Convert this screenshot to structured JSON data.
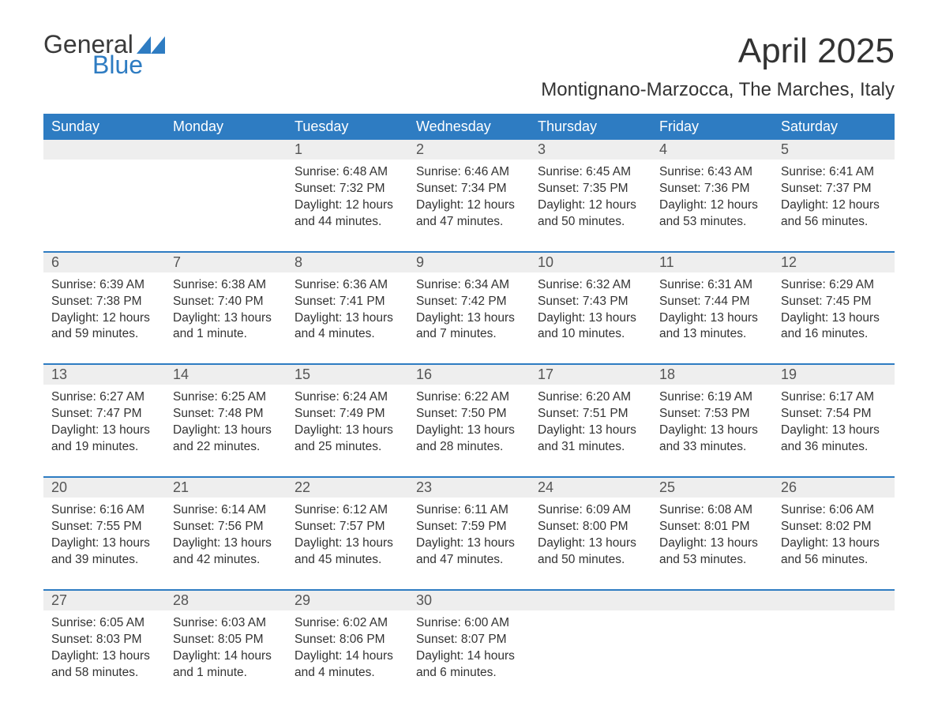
{
  "logo": {
    "word1": "General",
    "word2": "Blue"
  },
  "title": "April 2025",
  "location": "Montignano-Marzocca, The Marches, Italy",
  "colors": {
    "header_bg": "#2e7cc2",
    "header_text": "#ffffff",
    "daynum_bg": "#eeeeee",
    "border": "#2e7cc2",
    "body_text": "#333333",
    "logo_gray": "#3a3a3a",
    "logo_blue": "#2e7cc2",
    "page_bg": "#ffffff"
  },
  "layout": {
    "columns": 7,
    "header_fontsize": 18,
    "daynum_fontsize": 18,
    "detail_fontsize": 15.5,
    "title_fontsize": 44,
    "location_fontsize": 24
  },
  "daysOfWeek": [
    "Sunday",
    "Monday",
    "Tuesday",
    "Wednesday",
    "Thursday",
    "Friday",
    "Saturday"
  ],
  "weeks": [
    [
      null,
      null,
      {
        "n": "1",
        "sr": "6:48 AM",
        "ss": "7:32 PM",
        "dl": "12 hours and 44 minutes."
      },
      {
        "n": "2",
        "sr": "6:46 AM",
        "ss": "7:34 PM",
        "dl": "12 hours and 47 minutes."
      },
      {
        "n": "3",
        "sr": "6:45 AM",
        "ss": "7:35 PM",
        "dl": "12 hours and 50 minutes."
      },
      {
        "n": "4",
        "sr": "6:43 AM",
        "ss": "7:36 PM",
        "dl": "12 hours and 53 minutes."
      },
      {
        "n": "5",
        "sr": "6:41 AM",
        "ss": "7:37 PM",
        "dl": "12 hours and 56 minutes."
      }
    ],
    [
      {
        "n": "6",
        "sr": "6:39 AM",
        "ss": "7:38 PM",
        "dl": "12 hours and 59 minutes."
      },
      {
        "n": "7",
        "sr": "6:38 AM",
        "ss": "7:40 PM",
        "dl": "13 hours and 1 minute."
      },
      {
        "n": "8",
        "sr": "6:36 AM",
        "ss": "7:41 PM",
        "dl": "13 hours and 4 minutes."
      },
      {
        "n": "9",
        "sr": "6:34 AM",
        "ss": "7:42 PM",
        "dl": "13 hours and 7 minutes."
      },
      {
        "n": "10",
        "sr": "6:32 AM",
        "ss": "7:43 PM",
        "dl": "13 hours and 10 minutes."
      },
      {
        "n": "11",
        "sr": "6:31 AM",
        "ss": "7:44 PM",
        "dl": "13 hours and 13 minutes."
      },
      {
        "n": "12",
        "sr": "6:29 AM",
        "ss": "7:45 PM",
        "dl": "13 hours and 16 minutes."
      }
    ],
    [
      {
        "n": "13",
        "sr": "6:27 AM",
        "ss": "7:47 PM",
        "dl": "13 hours and 19 minutes."
      },
      {
        "n": "14",
        "sr": "6:25 AM",
        "ss": "7:48 PM",
        "dl": "13 hours and 22 minutes."
      },
      {
        "n": "15",
        "sr": "6:24 AM",
        "ss": "7:49 PM",
        "dl": "13 hours and 25 minutes."
      },
      {
        "n": "16",
        "sr": "6:22 AM",
        "ss": "7:50 PM",
        "dl": "13 hours and 28 minutes."
      },
      {
        "n": "17",
        "sr": "6:20 AM",
        "ss": "7:51 PM",
        "dl": "13 hours and 31 minutes."
      },
      {
        "n": "18",
        "sr": "6:19 AM",
        "ss": "7:53 PM",
        "dl": "13 hours and 33 minutes."
      },
      {
        "n": "19",
        "sr": "6:17 AM",
        "ss": "7:54 PM",
        "dl": "13 hours and 36 minutes."
      }
    ],
    [
      {
        "n": "20",
        "sr": "6:16 AM",
        "ss": "7:55 PM",
        "dl": "13 hours and 39 minutes."
      },
      {
        "n": "21",
        "sr": "6:14 AM",
        "ss": "7:56 PM",
        "dl": "13 hours and 42 minutes."
      },
      {
        "n": "22",
        "sr": "6:12 AM",
        "ss": "7:57 PM",
        "dl": "13 hours and 45 minutes."
      },
      {
        "n": "23",
        "sr": "6:11 AM",
        "ss": "7:59 PM",
        "dl": "13 hours and 47 minutes."
      },
      {
        "n": "24",
        "sr": "6:09 AM",
        "ss": "8:00 PM",
        "dl": "13 hours and 50 minutes."
      },
      {
        "n": "25",
        "sr": "6:08 AM",
        "ss": "8:01 PM",
        "dl": "13 hours and 53 minutes."
      },
      {
        "n": "26",
        "sr": "6:06 AM",
        "ss": "8:02 PM",
        "dl": "13 hours and 56 minutes."
      }
    ],
    [
      {
        "n": "27",
        "sr": "6:05 AM",
        "ss": "8:03 PM",
        "dl": "13 hours and 58 minutes."
      },
      {
        "n": "28",
        "sr": "6:03 AM",
        "ss": "8:05 PM",
        "dl": "14 hours and 1 minute."
      },
      {
        "n": "29",
        "sr": "6:02 AM",
        "ss": "8:06 PM",
        "dl": "14 hours and 4 minutes."
      },
      {
        "n": "30",
        "sr": "6:00 AM",
        "ss": "8:07 PM",
        "dl": "14 hours and 6 minutes."
      },
      null,
      null,
      null
    ]
  ],
  "labels": {
    "sunrise": "Sunrise: ",
    "sunset": "Sunset: ",
    "daylight": "Daylight: "
  }
}
